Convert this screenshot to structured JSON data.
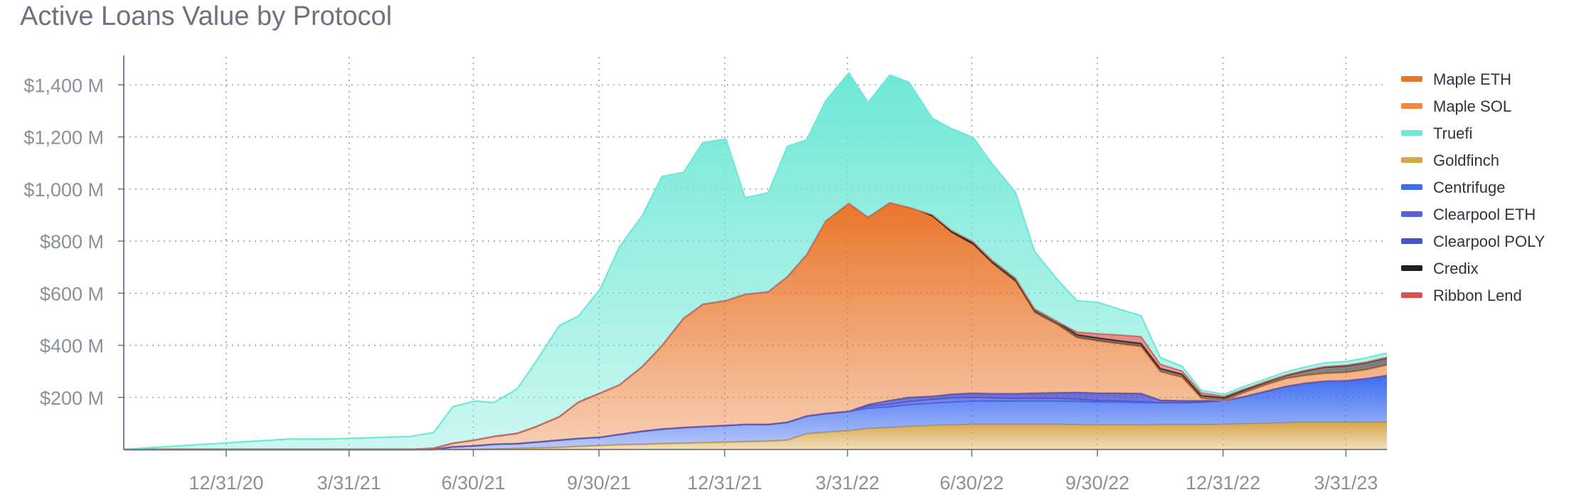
{
  "chart_data": {
    "type": "area",
    "title": "Active Loans Value by Protocol",
    "stacked": true,
    "xlabel": "",
    "ylabel": "",
    "x_ticks": [
      "12/31/20",
      "3/31/21",
      "6/30/21",
      "9/30/21",
      "12/31/21",
      "3/31/22",
      "6/30/22",
      "9/30/22",
      "12/31/22",
      "3/31/23"
    ],
    "y_ticks": [
      "$200 M",
      "$400 M",
      "$600 M",
      "$800 M",
      "$1,000 M",
      "$1,200 M",
      "$1,400 M"
    ],
    "ylim": [
      0,
      1480
    ],
    "xlim": [
      "2020-10-17",
      "2023-04-30"
    ],
    "grid": "dotted",
    "legend_position": "right",
    "x": [
      "2020-10-17",
      "2020-11-15",
      "2020-12-15",
      "2021-01-15",
      "2021-02-15",
      "2021-03-15",
      "2021-04-15",
      "2021-05-15",
      "2021-06-01",
      "2021-06-15",
      "2021-07-01",
      "2021-07-15",
      "2021-08-01",
      "2021-08-15",
      "2021-09-01",
      "2021-09-15",
      "2021-10-01",
      "2021-10-15",
      "2021-11-01",
      "2021-11-15",
      "2021-12-01",
      "2021-12-15",
      "2022-01-01",
      "2022-01-15",
      "2022-02-01",
      "2022-02-15",
      "2022-03-01",
      "2022-03-15",
      "2022-04-01",
      "2022-04-15",
      "2022-05-01",
      "2022-05-15",
      "2022-06-01",
      "2022-06-15",
      "2022-07-01",
      "2022-07-15",
      "2022-08-01",
      "2022-08-15",
      "2022-09-01",
      "2022-09-15",
      "2022-10-01",
      "2022-10-15",
      "2022-11-01",
      "2022-11-15",
      "2022-12-01",
      "2022-12-15",
      "2023-01-01",
      "2023-01-15",
      "2023-02-01",
      "2023-02-15",
      "2023-03-01",
      "2023-03-15",
      "2023-04-01",
      "2023-04-15",
      "2023-04-30"
    ],
    "series": [
      {
        "name": "Goldfinch",
        "color": "#d8a64a",
        "values": [
          0,
          0,
          0,
          0,
          0,
          0,
          0,
          0,
          0,
          0,
          0,
          2,
          4,
          6,
          8,
          12,
          15,
          18,
          20,
          22,
          24,
          26,
          28,
          30,
          32,
          36,
          60,
          66,
          72,
          80,
          84,
          88,
          92,
          94,
          96,
          96,
          96,
          96,
          96,
          95,
          94,
          94,
          94,
          95,
          95,
          95,
          96,
          98,
          100,
          102,
          104,
          104,
          104,
          104,
          104
        ]
      },
      {
        "name": "Centrifuge",
        "color": "#3c6cf0",
        "values": [
          0,
          0,
          0,
          0,
          0,
          0,
          0,
          0,
          0,
          10,
          14,
          18,
          18,
          22,
          28,
          30,
          32,
          40,
          50,
          56,
          60,
          62,
          64,
          66,
          64,
          68,
          68,
          72,
          74,
          78,
          80,
          84,
          86,
          88,
          90,
          90,
          90,
          90,
          90,
          90,
          88,
          88,
          86,
          84,
          84,
          86,
          92,
          104,
          124,
          140,
          150,
          158,
          160,
          168,
          180
        ]
      },
      {
        "name": "Clearpool ETH",
        "color": "#5b5fd8",
        "values": [
          0,
          0,
          0,
          0,
          0,
          0,
          0,
          0,
          0,
          0,
          0,
          0,
          0,
          0,
          0,
          0,
          0,
          0,
          0,
          0,
          0,
          0,
          0,
          0,
          0,
          0,
          0,
          0,
          0,
          8,
          10,
          12,
          14,
          16,
          14,
          12,
          10,
          10,
          10,
          8,
          6,
          4,
          3,
          0,
          0,
          0,
          0,
          0,
          0,
          0,
          0,
          0,
          0,
          0,
          0
        ]
      },
      {
        "name": "Clearpool POLY",
        "color": "#4a52c8",
        "values": [
          0,
          0,
          0,
          0,
          0,
          0,
          0,
          0,
          0,
          0,
          0,
          0,
          0,
          0,
          0,
          0,
          0,
          0,
          0,
          0,
          0,
          0,
          0,
          0,
          0,
          0,
          0,
          0,
          0,
          6,
          14,
          16,
          12,
          14,
          16,
          16,
          18,
          20,
          22,
          26,
          28,
          30,
          32,
          10,
          8,
          6,
          0,
          0,
          0,
          0,
          0,
          0,
          0,
          0,
          0
        ]
      },
      {
        "name": "Maple ETH",
        "color": "#e9762b",
        "values": [
          0,
          0,
          0,
          0,
          0,
          0,
          0,
          0,
          5,
          14,
          22,
          30,
          40,
          60,
          90,
          140,
          170,
          190,
          250,
          320,
          420,
          470,
          480,
          500,
          510,
          560,
          620,
          740,
          800,
          720,
          760,
          730,
          690,
          620,
          570,
          500,
          430,
          310,
          260,
          210,
          200,
          190,
          180,
          110,
          90,
          10,
          0,
          15,
          25,
          30,
          30,
          30,
          32,
          34,
          40
        ]
      },
      {
        "name": "Maple SOL",
        "color": "#ef8a3c",
        "values": [
          0,
          0,
          0,
          0,
          0,
          0,
          0,
          0,
          0,
          0,
          0,
          0,
          0,
          0,
          0,
          0,
          0,
          0,
          0,
          0,
          0,
          0,
          0,
          0,
          0,
          0,
          0,
          0,
          0,
          0,
          0,
          0,
          0,
          0,
          0,
          0,
          0,
          0,
          0,
          0,
          0,
          0,
          0,
          0,
          0,
          0,
          0,
          0,
          0,
          0,
          0,
          0,
          0,
          0,
          0
        ]
      },
      {
        "name": "Credix",
        "color": "#1e1f22",
        "values": [
          0,
          0,
          0,
          0,
          0,
          0,
          0,
          0,
          0,
          0,
          0,
          0,
          0,
          0,
          0,
          0,
          0,
          0,
          0,
          0,
          0,
          0,
          0,
          0,
          0,
          0,
          0,
          0,
          0,
          0,
          0,
          0,
          8,
          10,
          12,
          12,
          14,
          14,
          12,
          12,
          12,
          12,
          12,
          12,
          12,
          10,
          10,
          10,
          10,
          12,
          18,
          24,
          26,
          28,
          28
        ]
      },
      {
        "name": "Ribbon Lend",
        "color": "#d9534f",
        "values": [
          0,
          0,
          0,
          0,
          0,
          0,
          0,
          0,
          0,
          0,
          0,
          0,
          0,
          0,
          0,
          0,
          0,
          0,
          0,
          0,
          0,
          0,
          0,
          0,
          0,
          0,
          0,
          0,
          0,
          0,
          0,
          0,
          0,
          0,
          0,
          0,
          0,
          0,
          0,
          10,
          16,
          22,
          26,
          16,
          12,
          10,
          6,
          4,
          3,
          2,
          2,
          2,
          2,
          2,
          2
        ]
      },
      {
        "name": "Truefi",
        "color": "#6fe8d6",
        "values": [
          0,
          10,
          20,
          30,
          40,
          40,
          45,
          50,
          60,
          140,
          150,
          130,
          170,
          250,
          350,
          330,
          400,
          530,
          580,
          650,
          560,
          620,
          620,
          370,
          380,
          500,
          440,
          460,
          500,
          440,
          490,
          480,
          370,
          390,
          400,
          370,
          330,
          220,
          160,
          120,
          120,
          100,
          80,
          26,
          18,
          10,
          8,
          10,
          10,
          12,
          12,
          14,
          14,
          16,
          16
        ]
      }
    ]
  }
}
